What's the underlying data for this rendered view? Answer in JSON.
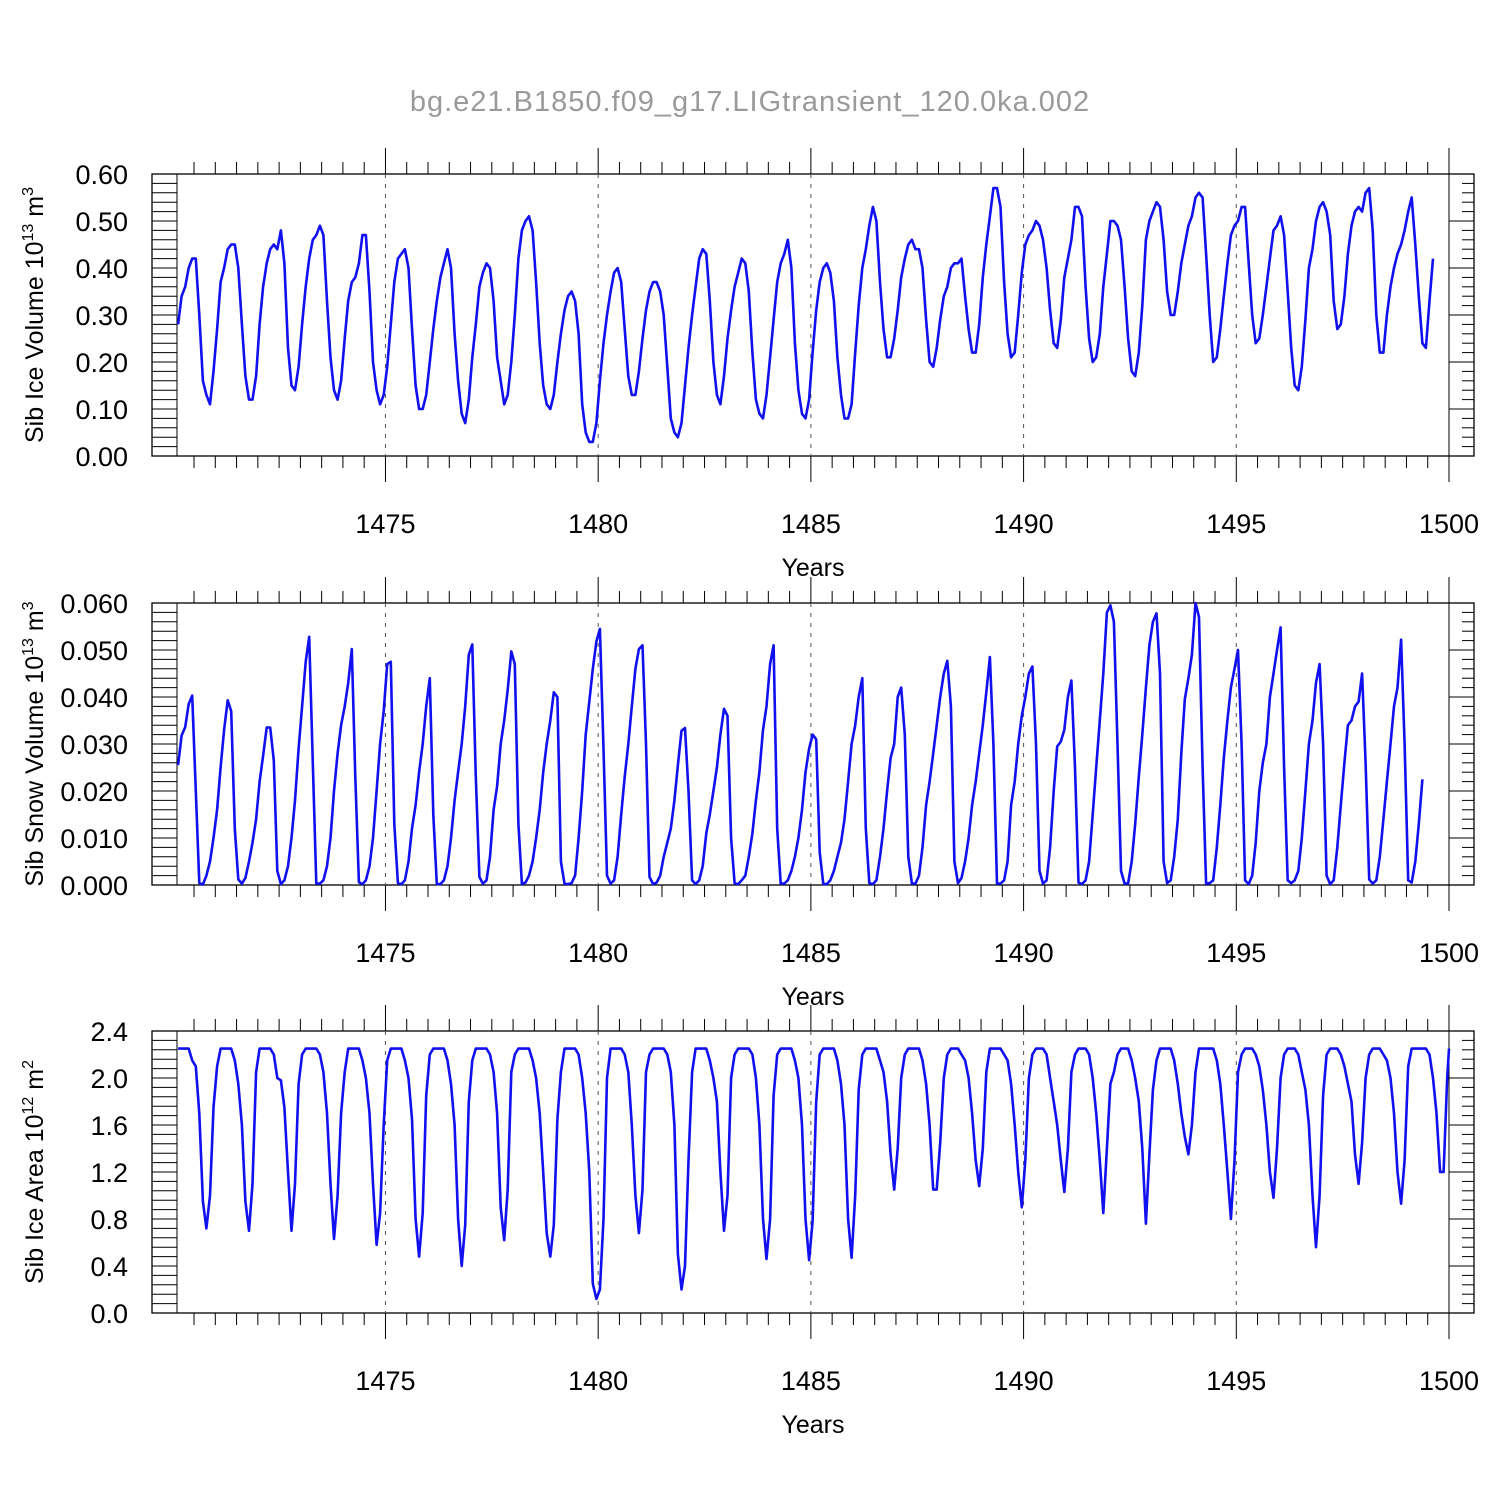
{
  "figure": {
    "title": "bg.e21.B1850.f09_g17.LIGtransient_120.0ka.002"
  },
  "chart_data": [
    {
      "type": "line",
      "xlabel": "Years",
      "ylabel_main": "Sib Ice Volume 10",
      "ylabel_exp": "13",
      "ylabel_unit": " m",
      "ylabel_unit_exp": "3",
      "xlim": [
        1470.1,
        1500
      ],
      "ylim": [
        0,
        0.6
      ],
      "x_ticks": [
        1475,
        1480,
        1485,
        1490,
        1495,
        1500
      ],
      "x_tick_labels": [
        "1475",
        "1480",
        "1485",
        "1490",
        "1495",
        "1500"
      ],
      "y_ticks": [
        0,
        0.1,
        0.2,
        0.3,
        0.4,
        0.5,
        0.6
      ],
      "y_tick_labels": [
        "0.00",
        "0.10",
        "0.20",
        "0.30",
        "0.40",
        "0.50",
        "0.60"
      ],
      "y_minor_step": 0.02,
      "grid": "vertical dashed at major x ticks",
      "color": "#1010f0",
      "x_start": 1470.125,
      "x_step": 0.08333,
      "values": [
        0.28,
        0.34,
        0.36,
        0.4,
        0.42,
        0.42,
        0.3,
        0.16,
        0.13,
        0.11,
        0.18,
        0.27,
        0.37,
        0.4,
        0.44,
        0.45,
        0.45,
        0.4,
        0.28,
        0.17,
        0.12,
        0.12,
        0.17,
        0.28,
        0.36,
        0.41,
        0.44,
        0.45,
        0.44,
        0.48,
        0.41,
        0.23,
        0.15,
        0.14,
        0.19,
        0.28,
        0.36,
        0.42,
        0.46,
        0.47,
        0.49,
        0.47,
        0.33,
        0.21,
        0.14,
        0.12,
        0.16,
        0.25,
        0.33,
        0.37,
        0.38,
        0.41,
        0.47,
        0.47,
        0.35,
        0.2,
        0.14,
        0.11,
        0.13,
        0.19,
        0.28,
        0.37,
        0.42,
        0.43,
        0.44,
        0.4,
        0.27,
        0.15,
        0.1,
        0.1,
        0.13,
        0.2,
        0.27,
        0.33,
        0.38,
        0.41,
        0.44,
        0.4,
        0.26,
        0.16,
        0.09,
        0.07,
        0.12,
        0.21,
        0.28,
        0.36,
        0.39,
        0.41,
        0.4,
        0.33,
        0.21,
        0.16,
        0.11,
        0.13,
        0.2,
        0.3,
        0.42,
        0.48,
        0.5,
        0.51,
        0.48,
        0.37,
        0.24,
        0.15,
        0.11,
        0.1,
        0.13,
        0.2,
        0.26,
        0.31,
        0.34,
        0.35,
        0.33,
        0.26,
        0.11,
        0.05,
        0.03,
        0.03,
        0.07,
        0.16,
        0.24,
        0.3,
        0.35,
        0.39,
        0.4,
        0.37,
        0.27,
        0.17,
        0.13,
        0.13,
        0.18,
        0.25,
        0.31,
        0.35,
        0.37,
        0.37,
        0.35,
        0.3,
        0.19,
        0.08,
        0.05,
        0.04,
        0.07,
        0.15,
        0.23,
        0.3,
        0.36,
        0.42,
        0.44,
        0.43,
        0.33,
        0.2,
        0.13,
        0.11,
        0.17,
        0.25,
        0.31,
        0.36,
        0.39,
        0.42,
        0.41,
        0.35,
        0.22,
        0.12,
        0.09,
        0.08,
        0.13,
        0.21,
        0.29,
        0.37,
        0.41,
        0.43,
        0.46,
        0.4,
        0.24,
        0.14,
        0.09,
        0.08,
        0.12,
        0.22,
        0.31,
        0.37,
        0.4,
        0.41,
        0.39,
        0.33,
        0.21,
        0.13,
        0.08,
        0.08,
        0.11,
        0.22,
        0.32,
        0.4,
        0.44,
        0.49,
        0.53,
        0.5,
        0.37,
        0.27,
        0.21,
        0.21,
        0.25,
        0.31,
        0.38,
        0.42,
        0.45,
        0.46,
        0.44,
        0.44,
        0.4,
        0.29,
        0.2,
        0.19,
        0.23,
        0.29,
        0.34,
        0.36,
        0.4,
        0.41,
        0.41,
        0.42,
        0.34,
        0.27,
        0.22,
        0.22,
        0.28,
        0.38,
        0.45,
        0.51,
        0.57,
        0.57,
        0.53,
        0.37,
        0.26,
        0.21,
        0.22,
        0.3,
        0.39,
        0.45,
        0.47,
        0.48,
        0.5,
        0.49,
        0.46,
        0.4,
        0.31,
        0.24,
        0.23,
        0.29,
        0.38,
        0.42,
        0.46,
        0.53,
        0.53,
        0.51,
        0.36,
        0.25,
        0.2,
        0.21,
        0.26,
        0.36,
        0.43,
        0.5,
        0.5,
        0.49,
        0.46,
        0.36,
        0.25,
        0.18,
        0.17,
        0.22,
        0.32,
        0.46,
        0.5,
        0.52,
        0.54,
        0.53,
        0.46,
        0.35,
        0.3,
        0.3,
        0.35,
        0.41,
        0.45,
        0.49,
        0.51,
        0.55,
        0.56,
        0.55,
        0.43,
        0.3,
        0.2,
        0.21,
        0.27,
        0.34,
        0.41,
        0.47,
        0.49,
        0.5,
        0.53,
        0.53,
        0.41,
        0.3,
        0.24,
        0.25,
        0.3,
        0.36,
        0.42,
        0.48,
        0.49,
        0.51,
        0.47,
        0.35,
        0.23,
        0.15,
        0.14,
        0.19,
        0.29,
        0.4,
        0.44,
        0.5,
        0.53,
        0.54,
        0.52,
        0.47,
        0.33,
        0.27,
        0.28,
        0.34,
        0.43,
        0.49,
        0.52,
        0.53,
        0.52,
        0.56,
        0.57,
        0.48,
        0.3,
        0.22,
        0.22,
        0.3,
        0.36,
        0.4,
        0.43,
        0.45,
        0.48,
        0.52,
        0.55,
        0.45,
        0.34,
        0.24,
        0.23,
        0.33,
        0.42
      ]
    },
    {
      "type": "line",
      "xlabel": "Years",
      "ylabel_main": "Sib Snow Volume 10",
      "ylabel_exp": "13",
      "ylabel_unit": " m",
      "ylabel_unit_exp": "3",
      "xlim": [
        1470.1,
        1500
      ],
      "ylim": [
        0,
        0.06
      ],
      "x_ticks": [
        1475,
        1480,
        1485,
        1490,
        1495,
        1500
      ],
      "x_tick_labels": [
        "1475",
        "1480",
        "1485",
        "1490",
        "1495",
        "1500"
      ],
      "y_ticks": [
        0,
        0.01,
        0.02,
        0.03,
        0.04,
        0.05,
        0.06
      ],
      "y_tick_labels": [
        "0.000",
        "0.010",
        "0.020",
        "0.030",
        "0.040",
        "0.050",
        "0.060"
      ],
      "y_minor_step": 0.002,
      "grid": "vertical dashed at major x ticks",
      "color": "#1010f0",
      "x_start": 1470.125,
      "x_step": 0.08333,
      "values": [
        0.0255,
        0.0318,
        0.0336,
        0.0385,
        0.0403,
        0.02,
        0.0004,
        0.0001,
        0.002,
        0.005,
        0.01,
        0.016,
        0.025,
        0.033,
        0.0393,
        0.037,
        0.012,
        0.0012,
        0.0003,
        0.0015,
        0.005,
        0.009,
        0.014,
        0.022,
        0.0275,
        0.0335,
        0.0335,
        0.0265,
        0.003,
        0.0002,
        0.001,
        0.004,
        0.01,
        0.018,
        0.029,
        0.038,
        0.0475,
        0.0528,
        0.026,
        0.0003,
        0.0003,
        0.001,
        0.004,
        0.01,
        0.02,
        0.028,
        0.034,
        0.038,
        0.043,
        0.0502,
        0.023,
        0.0006,
        0.0002,
        0.001,
        0.004,
        0.01,
        0.02,
        0.03,
        0.037,
        0.047,
        0.0475,
        0.013,
        0.0004,
        0.0002,
        0.001,
        0.005,
        0.012,
        0.017,
        0.024,
        0.03,
        0.038,
        0.044,
        0.015,
        0.0002,
        0.0002,
        0.001,
        0.004,
        0.01,
        0.018,
        0.024,
        0.03,
        0.038,
        0.049,
        0.0512,
        0.023,
        0.0017,
        0.0003,
        0.001,
        0.006,
        0.016,
        0.021,
        0.03,
        0.035,
        0.0415,
        0.0497,
        0.047,
        0.013,
        0.0002,
        0.0005,
        0.002,
        0.005,
        0.01,
        0.016,
        0.024,
        0.03,
        0.035,
        0.041,
        0.04,
        0.005,
        0.0003,
        0.0002,
        0.0004,
        0.002,
        0.01,
        0.02,
        0.032,
        0.039,
        0.046,
        0.0518,
        0.0545,
        0.029,
        0.002,
        0.0003,
        0.001,
        0.006,
        0.015,
        0.023,
        0.03,
        0.038,
        0.046,
        0.0502,
        0.051,
        0.03,
        0.0017,
        0.0002,
        0.0005,
        0.002,
        0.006,
        0.009,
        0.012,
        0.018,
        0.0255,
        0.0328,
        0.0334,
        0.02,
        0.001,
        0.0002,
        0.001,
        0.004,
        0.011,
        0.015,
        0.02,
        0.025,
        0.032,
        0.0375,
        0.036,
        0.01,
        0.0004,
        0.0002,
        0.001,
        0.002,
        0.006,
        0.011,
        0.018,
        0.024,
        0.033,
        0.038,
        0.047,
        0.051,
        0.012,
        0.0003,
        0.0003,
        0.001,
        0.003,
        0.006,
        0.01,
        0.016,
        0.024,
        0.029,
        0.032,
        0.031,
        0.007,
        0.0002,
        0.0002,
        0.001,
        0.003,
        0.006,
        0.009,
        0.014,
        0.022,
        0.03,
        0.034,
        0.04,
        0.044,
        0.012,
        0.0004,
        0.0002,
        0.001,
        0.006,
        0.012,
        0.02,
        0.027,
        0.03,
        0.04,
        0.042,
        0.032,
        0.006,
        0.0003,
        0.0003,
        0.002,
        0.008,
        0.017,
        0.022,
        0.028,
        0.034,
        0.04,
        0.045,
        0.0477,
        0.038,
        0.005,
        0.0004,
        0.0015,
        0.005,
        0.01,
        0.017,
        0.022,
        0.028,
        0.034,
        0.041,
        0.0485,
        0.03,
        0.0003,
        0.0003,
        0.001,
        0.005,
        0.017,
        0.022,
        0.03,
        0.036,
        0.04,
        0.045,
        0.0465,
        0.03,
        0.003,
        0.0003,
        0.001,
        0.008,
        0.02,
        0.0295,
        0.0305,
        0.033,
        0.04,
        0.0435,
        0.025,
        0.0005,
        0.0002,
        0.001,
        0.005,
        0.015,
        0.025,
        0.035,
        0.045,
        0.058,
        0.0595,
        0.056,
        0.03,
        0.003,
        0.0003,
        0.0003,
        0.005,
        0.013,
        0.023,
        0.032,
        0.042,
        0.051,
        0.056,
        0.0578,
        0.045,
        0.005,
        0.0004,
        0.001,
        0.006,
        0.014,
        0.028,
        0.0395,
        0.044,
        0.049,
        0.06,
        0.057,
        0.025,
        0.0003,
        0.0004,
        0.001,
        0.008,
        0.017,
        0.027,
        0.035,
        0.042,
        0.046,
        0.05,
        0.03,
        0.001,
        0.0002,
        0.002,
        0.009,
        0.02,
        0.026,
        0.03,
        0.04,
        0.045,
        0.05,
        0.0548,
        0.025,
        0.001,
        0.0004,
        0.001,
        0.003,
        0.01,
        0.02,
        0.03,
        0.035,
        0.043,
        0.047,
        0.03,
        0.002,
        0.0002,
        0.001,
        0.008,
        0.017,
        0.026,
        0.034,
        0.035,
        0.038,
        0.039,
        0.045,
        0.026,
        0.0012,
        0.0003,
        0.001,
        0.006,
        0.014,
        0.022,
        0.03,
        0.038,
        0.042,
        0.0522,
        0.03,
        0.001,
        0.0005,
        0.005,
        0.013,
        0.0225
      ]
    },
    {
      "type": "line",
      "xlabel": "Years",
      "ylabel_main": "Sib Ice Area 10",
      "ylabel_exp": "12",
      "ylabel_unit": " m",
      "ylabel_unit_exp": "2",
      "xlim": [
        1470.1,
        1500
      ],
      "ylim": [
        0,
        2.4
      ],
      "x_ticks": [
        1475,
        1480,
        1485,
        1490,
        1495,
        1500
      ],
      "x_tick_labels": [
        "1475",
        "1480",
        "1485",
        "1490",
        "1495",
        "1500"
      ],
      "y_ticks": [
        0,
        0.4,
        0.8,
        1.2,
        1.6,
        2.0,
        2.4
      ],
      "y_tick_labels": [
        "0.0",
        "0.4",
        "0.8",
        "1.2",
        "1.6",
        "2.0",
        "2.4"
      ],
      "y_minor_step": 0.08,
      "grid": "vertical dashed at major x ticks",
      "color": "#1010f0",
      "x_start": 1470.125,
      "x_step": 0.08333,
      "values": [
        2.25,
        2.25,
        2.25,
        2.25,
        2.15,
        2.1,
        1.7,
        0.95,
        0.72,
        1.0,
        1.75,
        2.1,
        2.25,
        2.25,
        2.25,
        2.25,
        2.15,
        1.95,
        1.6,
        0.95,
        0.7,
        1.1,
        2.05,
        2.25,
        2.25,
        2.25,
        2.25,
        2.2,
        2.0,
        1.98,
        1.75,
        1.2,
        0.7,
        1.1,
        1.95,
        2.2,
        2.25,
        2.25,
        2.25,
        2.25,
        2.2,
        2.05,
        1.7,
        1.1,
        0.63,
        1.0,
        1.7,
        2.05,
        2.25,
        2.25,
        2.25,
        2.25,
        2.15,
        2.0,
        1.7,
        1.1,
        0.58,
        0.85,
        1.6,
        2.15,
        2.25,
        2.25,
        2.25,
        2.25,
        2.15,
        2.0,
        1.65,
        0.8,
        0.48,
        0.85,
        1.85,
        2.2,
        2.25,
        2.25,
        2.25,
        2.25,
        2.15,
        1.95,
        1.6,
        0.8,
        0.4,
        0.75,
        1.8,
        2.15,
        2.25,
        2.25,
        2.25,
        2.25,
        2.2,
        2.05,
        1.7,
        0.9,
        0.62,
        1.05,
        2.05,
        2.2,
        2.25,
        2.25,
        2.25,
        2.25,
        2.15,
        2.0,
        1.7,
        1.2,
        0.68,
        0.48,
        0.75,
        1.65,
        2.05,
        2.25,
        2.25,
        2.25,
        2.25,
        2.2,
        2.0,
        1.7,
        1.2,
        0.25,
        0.12,
        0.2,
        0.8,
        2.0,
        2.25,
        2.25,
        2.25,
        2.25,
        2.2,
        2.05,
        1.6,
        1.0,
        0.68,
        1.05,
        2.05,
        2.2,
        2.25,
        2.25,
        2.25,
        2.25,
        2.2,
        2.05,
        1.6,
        0.5,
        0.2,
        0.4,
        1.3,
        2.05,
        2.25,
        2.25,
        2.25,
        2.25,
        2.15,
        2.0,
        1.8,
        1.2,
        0.7,
        1.0,
        2.0,
        2.2,
        2.25,
        2.25,
        2.25,
        2.25,
        2.2,
        2.0,
        1.6,
        0.8,
        0.46,
        0.8,
        1.85,
        2.2,
        2.25,
        2.25,
        2.25,
        2.25,
        2.15,
        2.0,
        1.6,
        0.8,
        0.45,
        0.78,
        1.8,
        2.2,
        2.25,
        2.25,
        2.25,
        2.25,
        2.15,
        1.95,
        1.6,
        0.8,
        0.47,
        1.0,
        1.9,
        2.2,
        2.25,
        2.25,
        2.25,
        2.25,
        2.15,
        2.05,
        1.8,
        1.35,
        1.05,
        1.4,
        2.0,
        2.2,
        2.25,
        2.25,
        2.25,
        2.25,
        2.15,
        1.95,
        1.6,
        1.05,
        1.05,
        1.45,
        2.0,
        2.2,
        2.25,
        2.25,
        2.25,
        2.2,
        2.15,
        2.0,
        1.7,
        1.3,
        1.08,
        1.4,
        2.05,
        2.25,
        2.25,
        2.25,
        2.25,
        2.2,
        2.15,
        1.95,
        1.6,
        1.2,
        0.9,
        1.3,
        2.0,
        2.2,
        2.25,
        2.25,
        2.25,
        2.2,
        2.0,
        1.8,
        1.6,
        1.3,
        1.03,
        1.4,
        2.05,
        2.2,
        2.25,
        2.25,
        2.25,
        2.2,
        2.0,
        1.7,
        1.3,
        0.85,
        1.4,
        1.95,
        2.05,
        2.2,
        2.25,
        2.25,
        2.25,
        2.15,
        2.0,
        1.8,
        1.4,
        0.76,
        1.35,
        1.9,
        2.15,
        2.25,
        2.25,
        2.25,
        2.25,
        2.15,
        1.95,
        1.7,
        1.5,
        1.35,
        1.6,
        2.05,
        2.25,
        2.25,
        2.25,
        2.25,
        2.25,
        2.15,
        1.95,
        1.6,
        1.2,
        0.8,
        1.3,
        2.05,
        2.2,
        2.25,
        2.25,
        2.25,
        2.2,
        2.1,
        1.9,
        1.6,
        1.2,
        0.98,
        1.4,
        2.0,
        2.2,
        2.25,
        2.25,
        2.25,
        2.2,
        2.05,
        1.9,
        1.6,
        1.0,
        0.56,
        1.0,
        1.85,
        2.2,
        2.25,
        2.25,
        2.25,
        2.2,
        2.1,
        1.95,
        1.8,
        1.35,
        1.1,
        1.45,
        2.0,
        2.2,
        2.25,
        2.25,
        2.25,
        2.2,
        2.15,
        2.0,
        1.7,
        1.2,
        0.93,
        1.3,
        2.1,
        2.25,
        2.25,
        2.25,
        2.25,
        2.25,
        2.2,
        2.0,
        1.7,
        1.2,
        1.2,
        2.0,
        2.25
      ]
    }
  ]
}
